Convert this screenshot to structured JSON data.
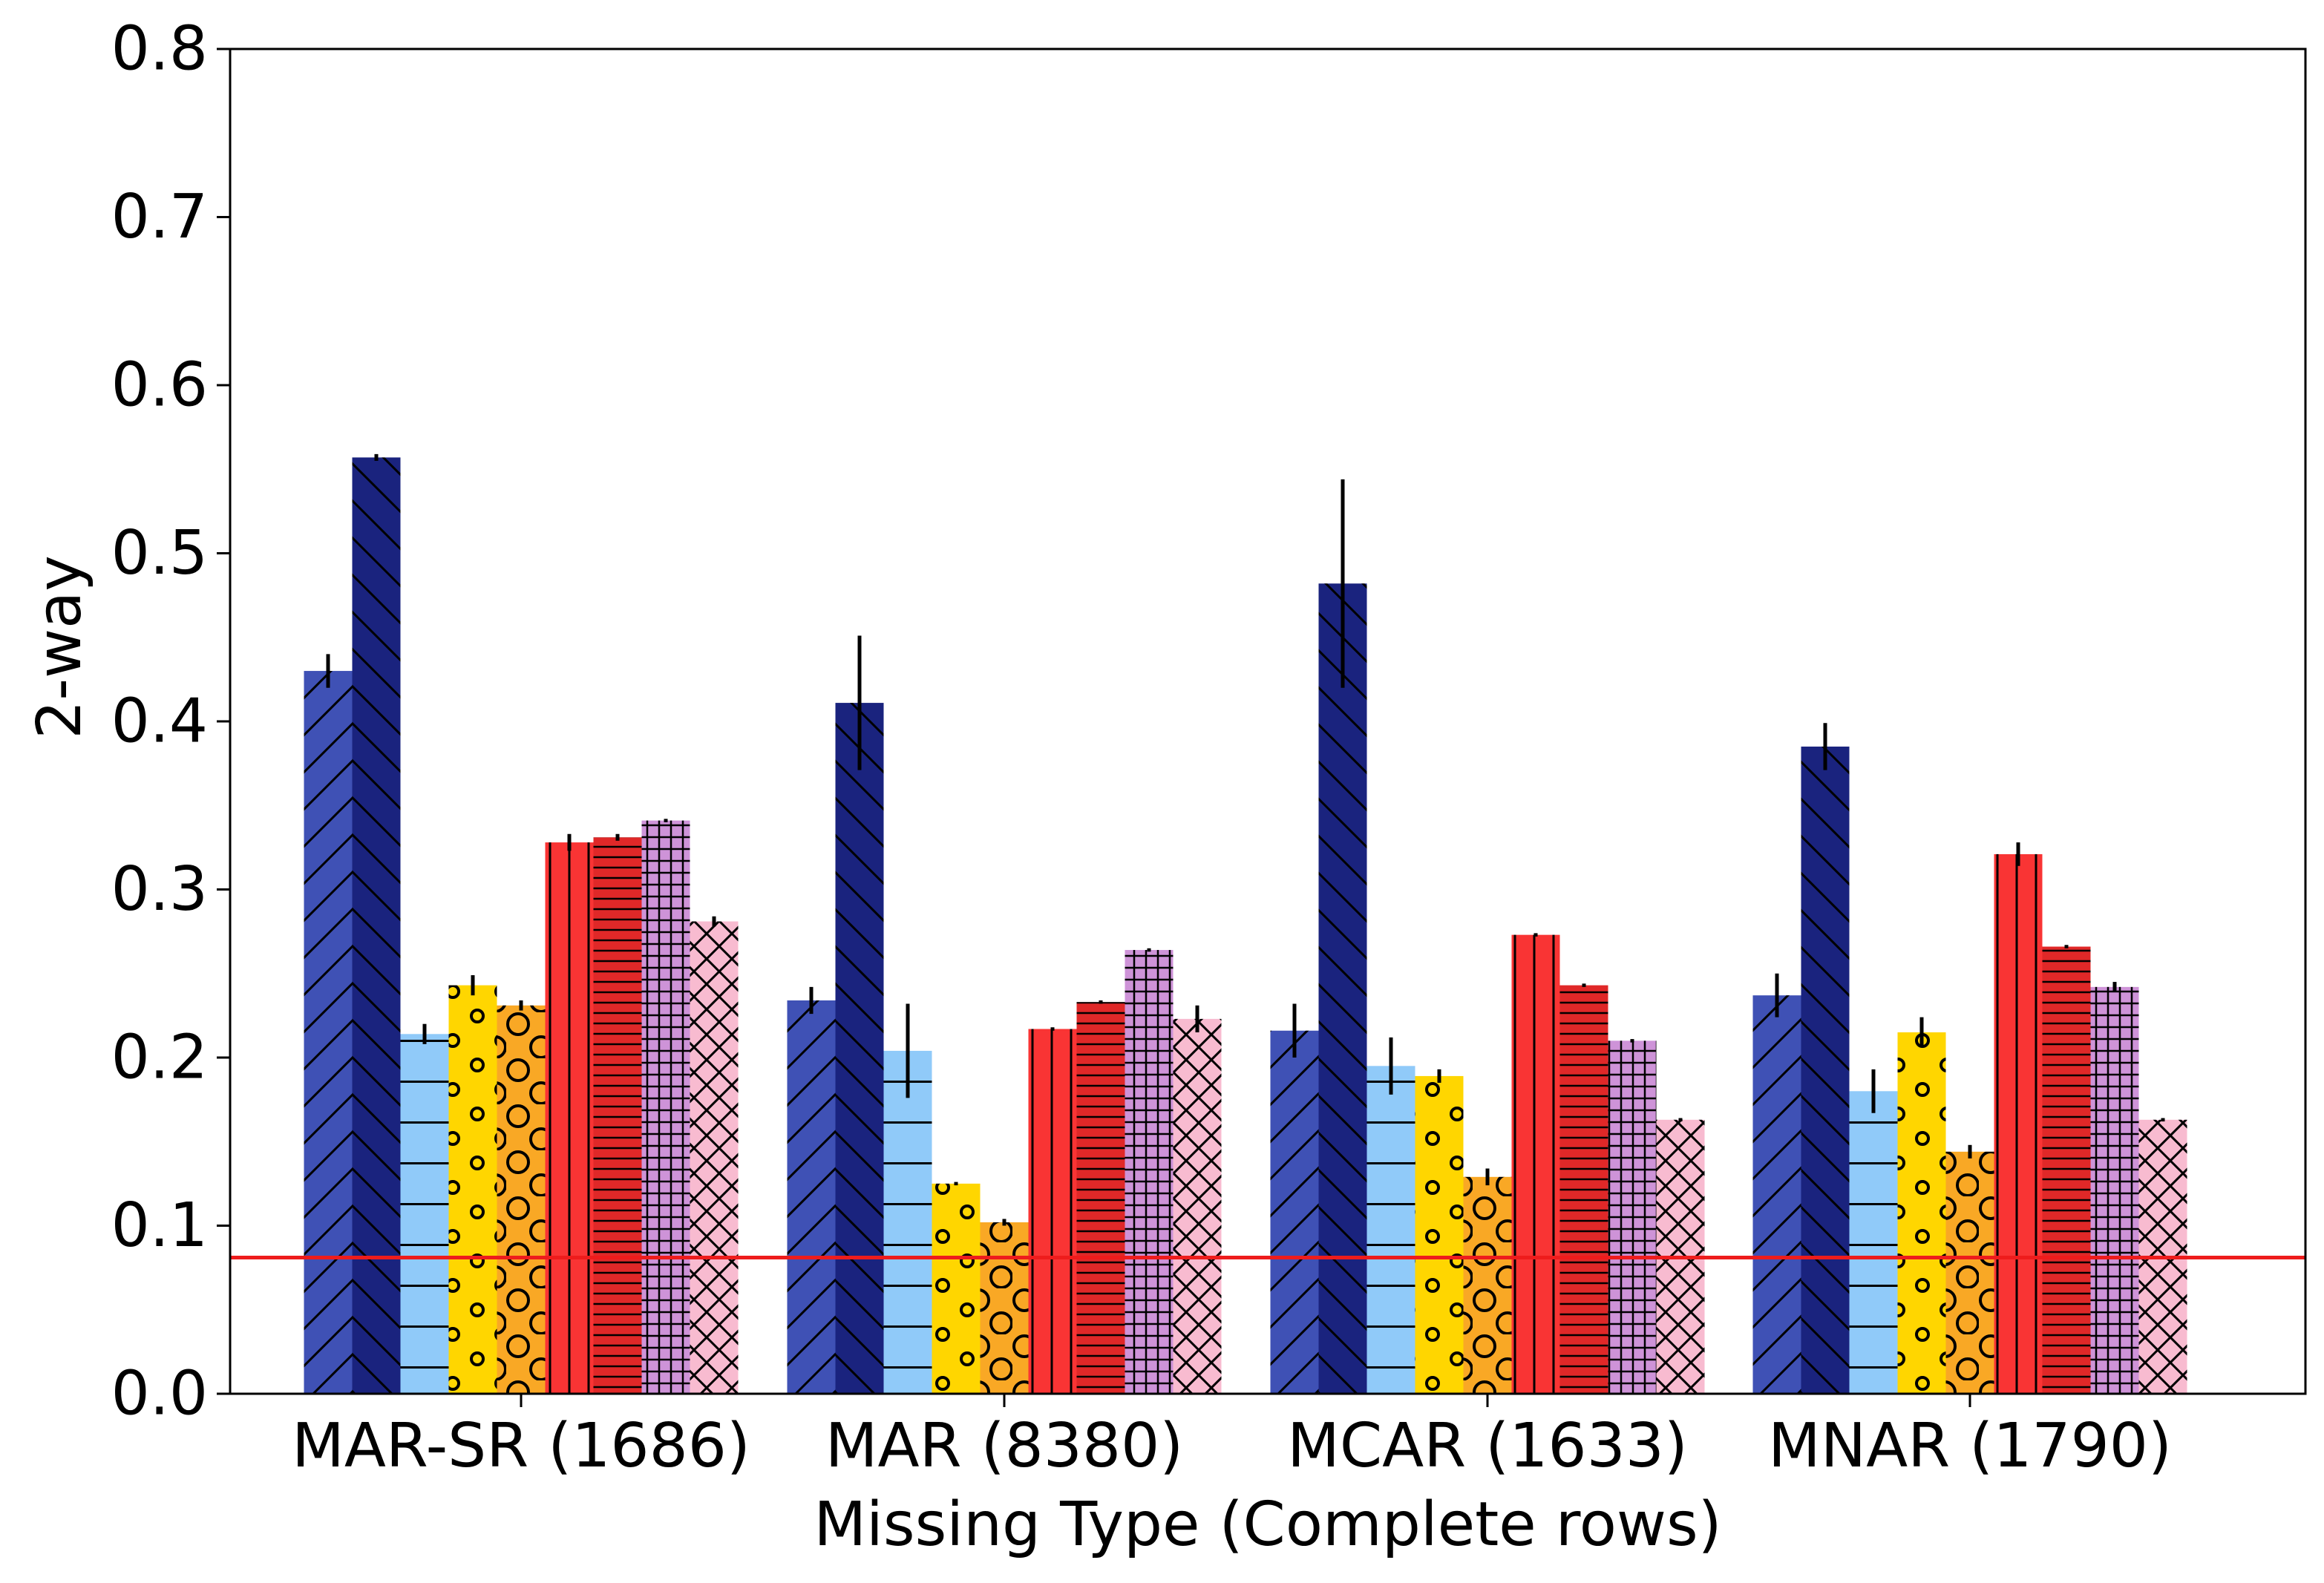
{
  "chart_data": {
    "type": "bar",
    "title": "",
    "xlabel": "Missing Type (Complete rows)",
    "ylabel": "2-way",
    "ylim": [
      0,
      0.8
    ],
    "yticks": [
      "0.0",
      "0.1",
      "0.2",
      "0.3",
      "0.4",
      "0.5",
      "0.6",
      "0.7",
      "0.8"
    ],
    "categories": [
      "MAR-SR (1686)",
      "MAR (8380)",
      "MCAR (1633)",
      "MNAR (1790)"
    ],
    "grid": false,
    "reference_line": {
      "value": 0.081,
      "color": "#ee1c1c"
    },
    "series": [
      {
        "color": "#3f51b5",
        "hatch": "fwd-diagonal",
        "values": [
          0.43,
          0.234,
          0.216,
          0.237
        ],
        "errors": [
          0.01,
          0.008,
          0.016,
          0.013
        ]
      },
      {
        "color": "#1a237e",
        "hatch": "back-diagonal",
        "values": [
          0.557,
          0.411,
          0.482,
          0.385
        ],
        "errors": [
          0.002,
          0.04,
          0.062,
          0.014
        ]
      },
      {
        "color": "#90caf9",
        "hatch": "horizontal",
        "values": [
          0.214,
          0.204,
          0.195,
          0.18
        ],
        "errors": [
          0.006,
          0.028,
          0.017,
          0.013
        ]
      },
      {
        "color": "#ffd600",
        "hatch": "small-circles",
        "values": [
          0.243,
          0.125,
          0.189,
          0.215
        ],
        "errors": [
          0.006,
          0.001,
          0.004,
          0.009
        ]
      },
      {
        "color": "#f9a825",
        "hatch": "large-circles",
        "values": [
          0.231,
          0.102,
          0.129,
          0.144
        ],
        "errors": [
          0.003,
          0.002,
          0.005,
          0.004
        ]
      },
      {
        "color": "#f93434",
        "hatch": "vertical",
        "values": [
          0.328,
          0.217,
          0.273,
          0.321
        ],
        "errors": [
          0.005,
          0.001,
          0.001,
          0.007
        ]
      },
      {
        "color": "#e02828",
        "hatch": "dense-horizontal",
        "values": [
          0.331,
          0.233,
          0.243,
          0.266
        ],
        "errors": [
          0.002,
          0.001,
          0.001,
          0.001
        ]
      },
      {
        "color": "#ce93d8",
        "hatch": "grid",
        "values": [
          0.341,
          0.264,
          0.21,
          0.242
        ],
        "errors": [
          0.001,
          0.001,
          0.001,
          0.003
        ]
      },
      {
        "color": "#f8bbd0",
        "hatch": "crosshatch",
        "values": [
          0.281,
          0.223,
          0.163,
          0.163
        ],
        "errors": [
          0.003,
          0.008,
          0.001,
          0.001
        ]
      }
    ]
  }
}
